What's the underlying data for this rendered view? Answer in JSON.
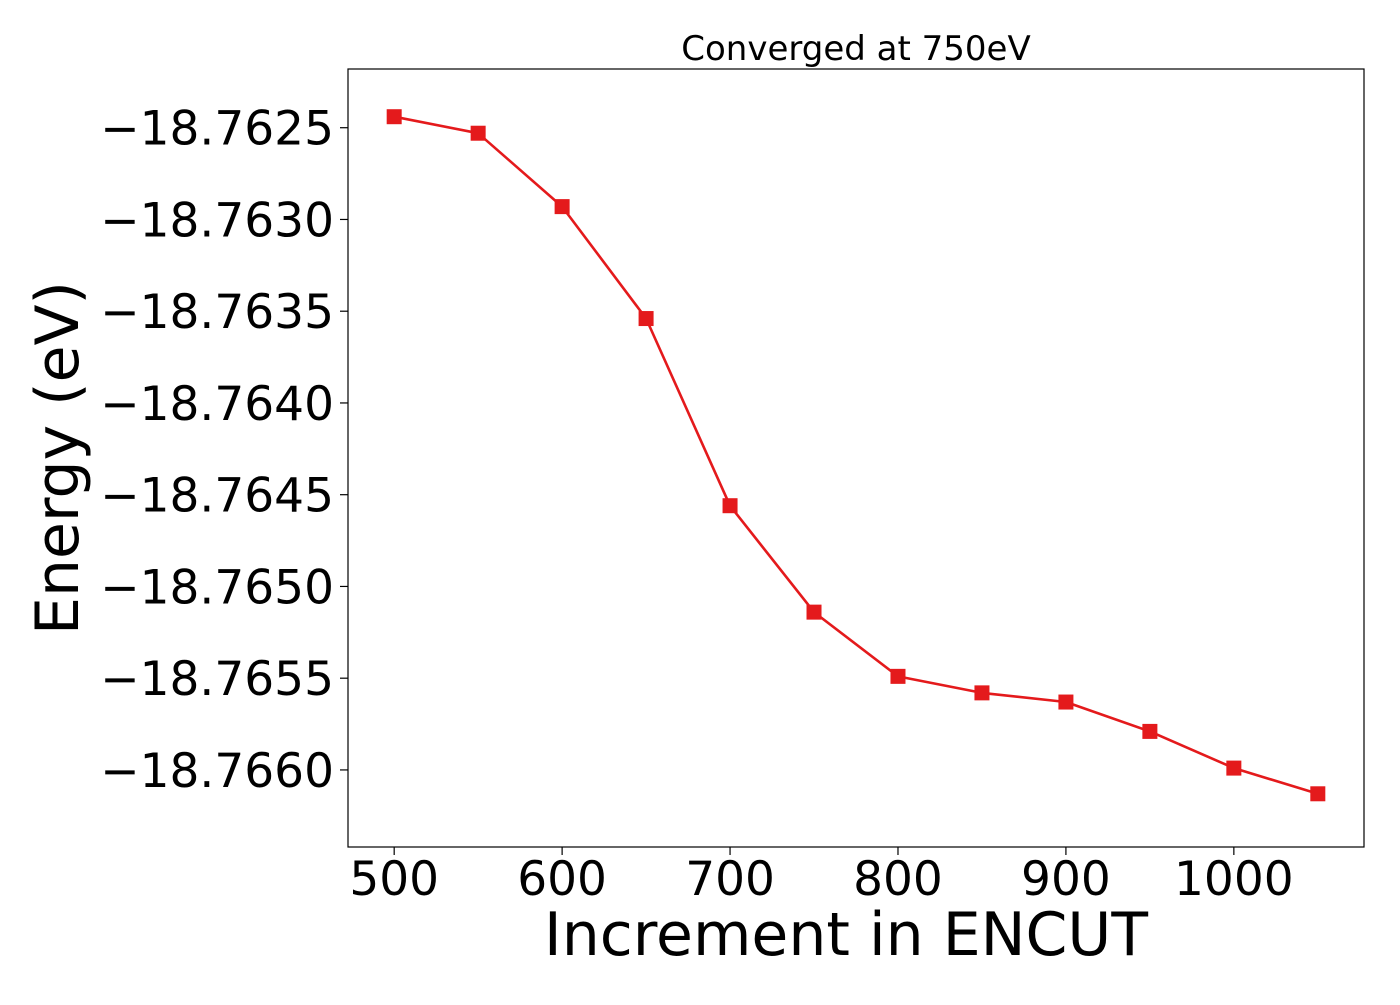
{
  "chart_data": {
    "type": "line",
    "title": "Converged at 750eV",
    "xlabel": "Increment in ENCUT",
    "ylabel": "Energy (eV)",
    "xlim": [
      472.5,
      1077.5
    ],
    "ylim": [
      -18.76642,
      -18.76218
    ],
    "xticks": [
      500,
      600,
      700,
      800,
      900,
      1000
    ],
    "xtick_labels": [
      "500",
      "600",
      "700",
      "800",
      "900",
      "1000"
    ],
    "yticks": [
      -18.7625,
      -18.763,
      -18.7635,
      -18.764,
      -18.7645,
      -18.765,
      -18.7655,
      -18.766
    ],
    "ytick_labels": [
      "−18.7625",
      "−18.7630",
      "−18.7635",
      "−18.7640",
      "−18.7645",
      "−18.7650",
      "−18.7655",
      "−18.7660"
    ],
    "grid": false,
    "series": [
      {
        "color": "#e41a1c",
        "marker": "square",
        "x": [
          500,
          550,
          600,
          650,
          700,
          750,
          800,
          850,
          900,
          950,
          1000,
          1050
        ],
        "y": [
          -18.76244,
          -18.76253,
          -18.76293,
          -18.76354,
          -18.76456,
          -18.76514,
          -18.76549,
          -18.76558,
          -18.76563,
          -18.76579,
          -18.76599,
          -18.76613
        ]
      }
    ]
  }
}
